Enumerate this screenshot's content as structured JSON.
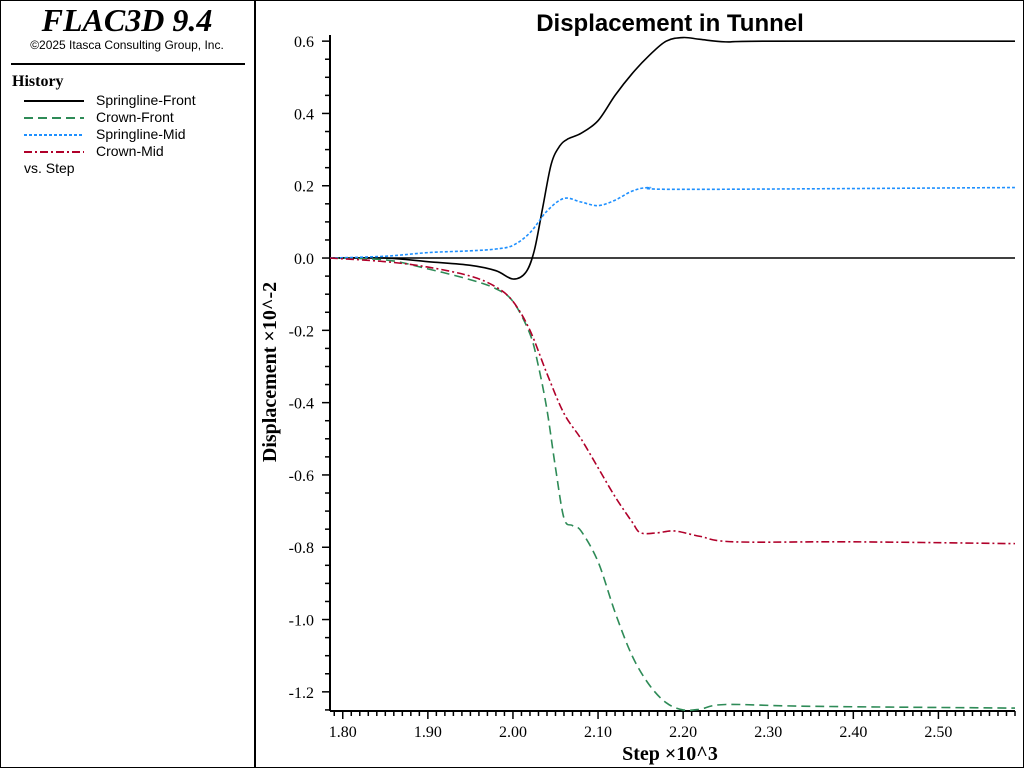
{
  "header": {
    "app_title": "FLAC3D 9.4",
    "copyright": "©2025 Itasca Consulting Group, Inc."
  },
  "legend": {
    "heading": "History",
    "vs_label": "vs. Step"
  },
  "chart_data": {
    "type": "line",
    "title": "Displacement in Tunnel",
    "xlabel": "Step ×10^3",
    "ylabel": "Displacement ×10^-2",
    "xlim": [
      1.785,
      2.59
    ],
    "ylim": [
      -1.253,
      0.617
    ],
    "xticks": [
      "1.80",
      "1.90",
      "2.00",
      "2.10",
      "2.20",
      "2.30",
      "2.40",
      "2.50"
    ],
    "yticks": [
      "0.6",
      "0.4",
      "0.2",
      "0.0",
      "-0.2",
      "-0.4",
      "-0.6",
      "-0.8",
      "-1.0",
      "-1.2"
    ],
    "series": [
      {
        "name": "Springline-Front",
        "color": "#000000",
        "dash": "solid",
        "x": [
          1.785,
          1.85,
          1.9,
          1.95,
          1.98,
          2.0,
          2.015,
          2.025,
          2.035,
          2.045,
          2.055,
          2.065,
          2.08,
          2.1,
          2.12,
          2.14,
          2.16,
          2.18,
          2.2,
          2.22,
          2.25,
          2.3,
          2.59
        ],
        "y": [
          0,
          0,
          -0.01,
          -0.02,
          -0.035,
          -0.058,
          -0.04,
          0.02,
          0.14,
          0.26,
          0.31,
          0.33,
          0.345,
          0.38,
          0.45,
          0.51,
          0.56,
          0.6,
          0.61,
          0.605,
          0.598,
          0.6,
          0.6
        ]
      },
      {
        "name": "Crown-Front",
        "color": "#2e8b57",
        "dash": "dash",
        "x": [
          1.785,
          1.85,
          1.9,
          1.95,
          1.98,
          2.0,
          2.02,
          2.03,
          2.04,
          2.05,
          2.06,
          2.07,
          2.08,
          2.1,
          2.12,
          2.14,
          2.16,
          2.18,
          2.2,
          2.22,
          2.25,
          2.35,
          2.59
        ],
        "y": [
          0,
          -0.005,
          -0.03,
          -0.06,
          -0.085,
          -0.12,
          -0.21,
          -0.3,
          -0.42,
          -0.58,
          -0.72,
          -0.74,
          -0.755,
          -0.84,
          -0.98,
          -1.1,
          -1.18,
          -1.23,
          -1.25,
          -1.248,
          -1.235,
          -1.24,
          -1.245
        ]
      },
      {
        "name": "Springline-Mid",
        "color": "#1e90ff",
        "dash": "dot",
        "x": [
          1.785,
          1.85,
          1.9,
          1.95,
          1.98,
          2.0,
          2.02,
          2.04,
          2.06,
          2.08,
          2.1,
          2.12,
          2.14,
          2.16,
          2.2,
          2.59
        ],
        "y": [
          0,
          0.005,
          0.015,
          0.02,
          0.025,
          0.035,
          0.07,
          0.13,
          0.165,
          0.155,
          0.145,
          0.16,
          0.185,
          0.195,
          0.19,
          0.195
        ]
      },
      {
        "name": "Crown-Mid",
        "color": "#b0002a",
        "dash": "dashdot",
        "x": [
          1.785,
          1.85,
          1.9,
          1.95,
          1.98,
          2.0,
          2.02,
          2.04,
          2.06,
          2.08,
          2.1,
          2.12,
          2.14,
          2.15,
          2.17,
          2.19,
          2.22,
          2.26,
          2.4,
          2.59
        ],
        "y": [
          0,
          -0.01,
          -0.025,
          -0.05,
          -0.08,
          -0.12,
          -0.2,
          -0.32,
          -0.43,
          -0.5,
          -0.58,
          -0.66,
          -0.73,
          -0.76,
          -0.76,
          -0.755,
          -0.77,
          -0.785,
          -0.785,
          -0.79
        ]
      }
    ]
  }
}
